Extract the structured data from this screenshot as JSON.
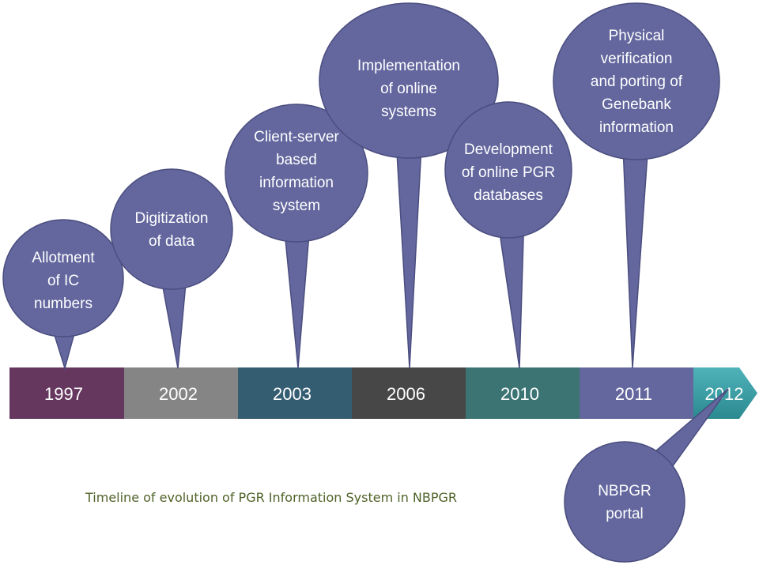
{
  "colors": {
    "bubble_fill": "#63679e",
    "bubble_stroke": "#4a4d7e",
    "caption": "#4f6228"
  },
  "timeline": [
    {
      "year": "1997",
      "color": "#65375f"
    },
    {
      "year": "2002",
      "color": "#858585"
    },
    {
      "year": "2003",
      "color": "#345d72"
    },
    {
      "year": "2006",
      "color": "#474747"
    },
    {
      "year": "2010",
      "color": "#3c7474"
    },
    {
      "year": "2011",
      "color": "#63679e"
    },
    {
      "year": "2012",
      "color": "#3a9ca3"
    }
  ],
  "bubbles": [
    {
      "lines": [
        "Allotment",
        "of IC",
        "numbers"
      ]
    },
    {
      "lines": [
        "Digitization",
        "of data"
      ]
    },
    {
      "lines": [
        "Client-server",
        "based",
        "information",
        "system"
      ]
    },
    {
      "lines": [
        "Implementation",
        "of online",
        "systems"
      ]
    },
    {
      "lines": [
        "Development",
        "of online PGR",
        "databases"
      ]
    },
    {
      "lines": [
        "Physical",
        "verification",
        "and porting of",
        "Genebank",
        "information"
      ]
    },
    {
      "lines": [
        "NBPGR",
        "portal"
      ]
    }
  ],
  "caption": "Timeline of evolution of PGR Information System in NBPGR"
}
